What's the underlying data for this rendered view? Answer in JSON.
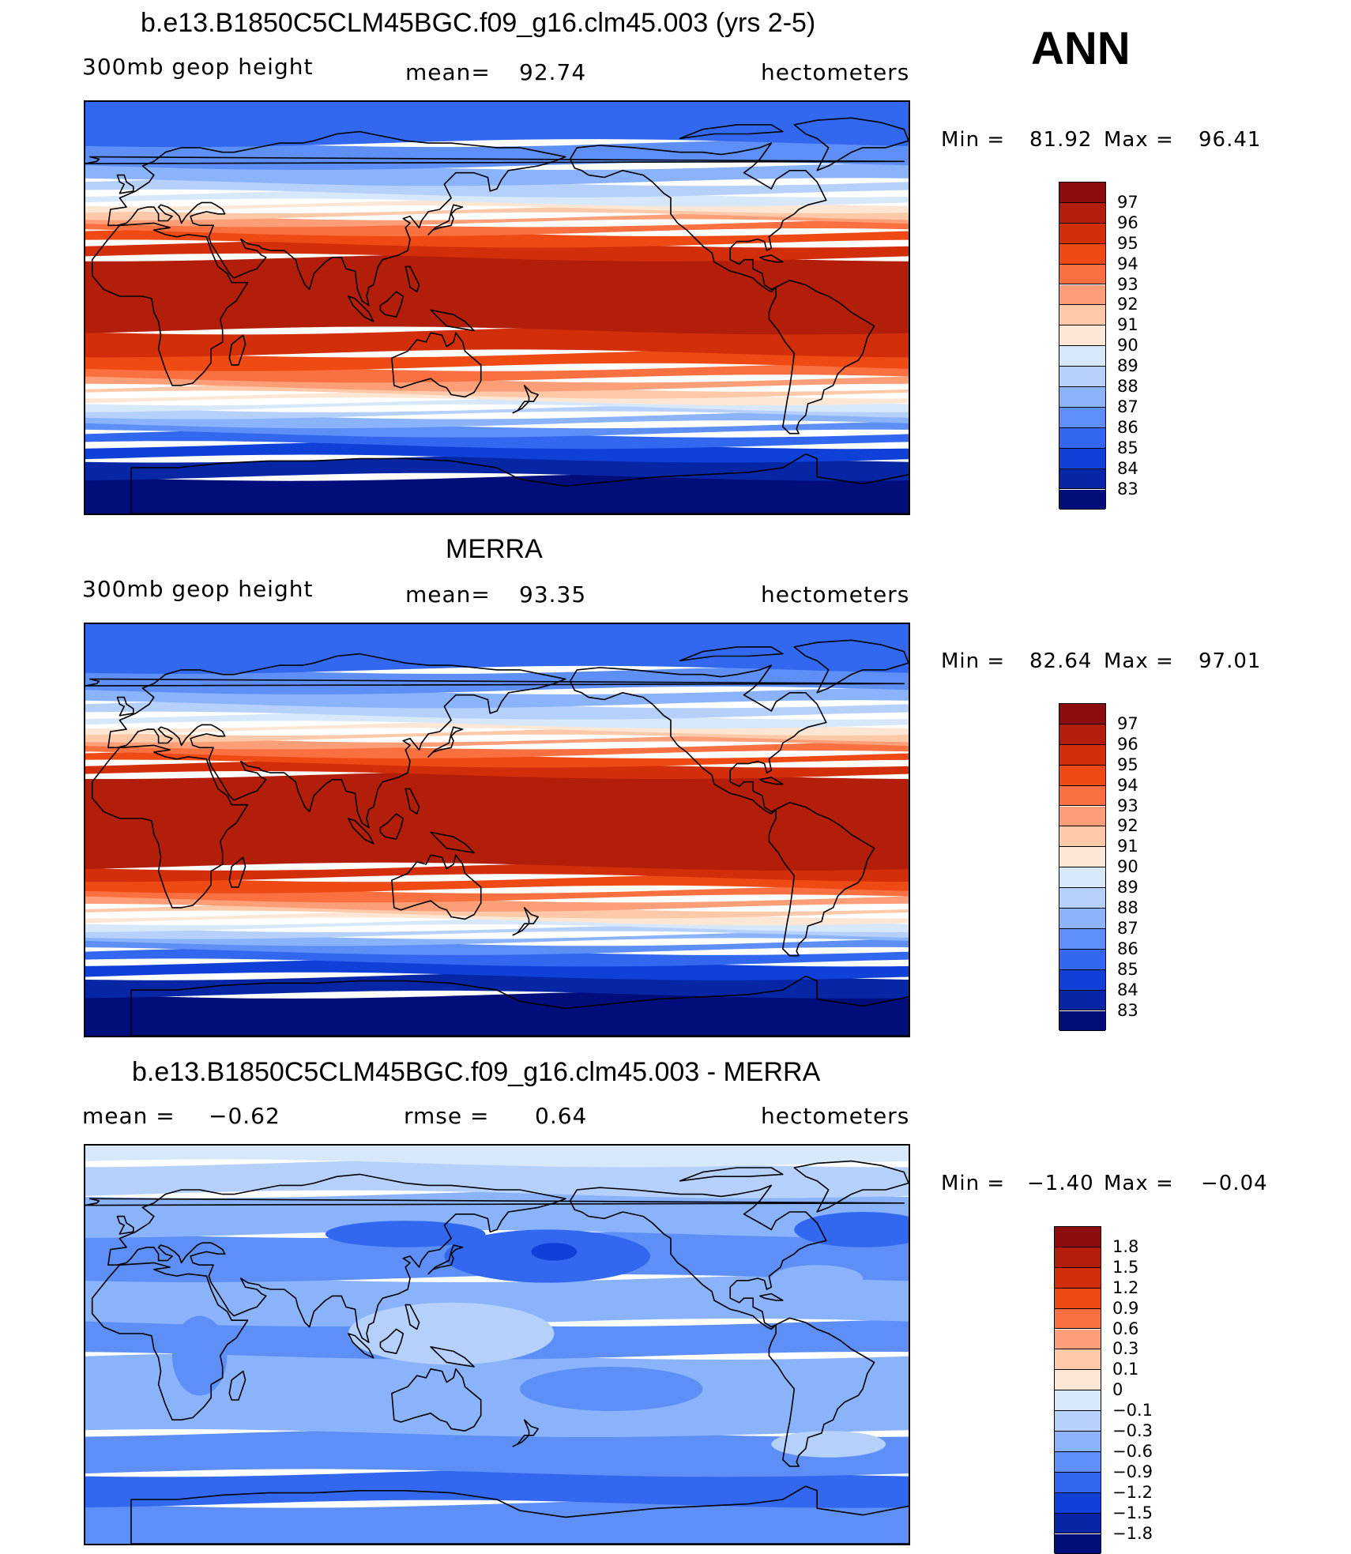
{
  "season": "ANN",
  "panels": [
    {
      "id": "model",
      "title": "b.e13.B1850C5CLM45BGC.f09_g16.clm45.003 (yrs 2-5)",
      "left_label": "300mb geop height",
      "center_label": "mean=",
      "center_value": "92.74",
      "right_label": "hectometers",
      "min_max": {
        "min_label": "Min =",
        "min": "81.92",
        "max_label": "Max =",
        "max": "96.41"
      },
      "legend": {
        "labels": [
          "97",
          "96",
          "95",
          "94",
          "93",
          "92",
          "91",
          "90",
          "89",
          "88",
          "87",
          "86",
          "85",
          "84",
          "83"
        ],
        "colors": [
          "#8c0d0d",
          "#b21e0a",
          "#d22e0a",
          "#f04a14",
          "#fb7040",
          "#fc9e78",
          "#fdc9a8",
          "#fee6d4",
          "#d7e8fb",
          "#b4d0fb",
          "#8ab3fb",
          "#5d8ff6",
          "#3268f0",
          "#0f41d8",
          "#0626a6",
          "#010d7a"
        ]
      },
      "map": {
        "bands": [
          {
            "from": -90,
            "to": -74,
            "color": "#010d7a"
          },
          {
            "from": -74,
            "to": -66,
            "color": "#0626a6"
          },
          {
            "from": -66,
            "to": -60,
            "color": "#0f41d8"
          },
          {
            "from": -60,
            "to": -55,
            "color": "#3268f0"
          },
          {
            "from": -55,
            "to": -51,
            "color": "#5d8ff6"
          },
          {
            "from": -51,
            "to": -47,
            "color": "#8ab3fb"
          },
          {
            "from": -47,
            "to": -44,
            "color": "#b4d0fb"
          },
          {
            "from": -44,
            "to": -41,
            "color": "#d7e8fb"
          },
          {
            "from": -41,
            "to": -38,
            "color": "#fee6d4"
          },
          {
            "from": -38,
            "to": -35,
            "color": "#fdc9a8"
          },
          {
            "from": -35,
            "to": -31,
            "color": "#fc9e78"
          },
          {
            "from": -31,
            "to": -26,
            "color": "#fb7040"
          },
          {
            "from": -26,
            "to": -20,
            "color": "#f04a14"
          },
          {
            "from": -20,
            "to": -10,
            "color": "#d22e0a"
          },
          {
            "from": -10,
            "to": 22,
            "color": "#b21e0a"
          },
          {
            "from": 22,
            "to": 28,
            "color": "#d22e0a"
          },
          {
            "from": 28,
            "to": 33,
            "color": "#f04a14"
          },
          {
            "from": 33,
            "to": 37,
            "color": "#fb7040"
          },
          {
            "from": 37,
            "to": 40,
            "color": "#fc9e78"
          },
          {
            "from": 40,
            "to": 43,
            "color": "#fdc9a8"
          },
          {
            "from": 43,
            "to": 46,
            "color": "#fee6d4"
          },
          {
            "from": 46,
            "to": 50,
            "color": "#d7e8fb"
          },
          {
            "from": 50,
            "to": 55,
            "color": "#b4d0fb"
          },
          {
            "from": 55,
            "to": 62,
            "color": "#8ab3fb"
          },
          {
            "from": 62,
            "to": 72,
            "color": "#5d8ff6"
          },
          {
            "from": 72,
            "to": 90,
            "color": "#3268f0"
          }
        ]
      }
    },
    {
      "id": "obs",
      "title": "MERRA",
      "left_label": "300mb geop height",
      "center_label": "mean=",
      "center_value": "93.35",
      "right_label": "hectometers",
      "min_max": {
        "min_label": "Min =",
        "min": "82.64",
        "max_label": "Max =",
        "max": "97.01"
      },
      "legend": {
        "labels": [
          "97",
          "96",
          "95",
          "94",
          "93",
          "92",
          "91",
          "90",
          "89",
          "88",
          "87",
          "86",
          "85",
          "84",
          "83"
        ],
        "colors": [
          "#8c0d0d",
          "#b21e0a",
          "#d22e0a",
          "#f04a14",
          "#fb7040",
          "#fc9e78",
          "#fdc9a8",
          "#fee6d4",
          "#d7e8fb",
          "#b4d0fb",
          "#8ab3fb",
          "#5d8ff6",
          "#3268f0",
          "#0f41d8",
          "#0626a6",
          "#010d7a"
        ]
      },
      "map": {
        "bands": [
          {
            "from": -90,
            "to": -72,
            "color": "#010d7a"
          },
          {
            "from": -72,
            "to": -64,
            "color": "#0626a6"
          },
          {
            "from": -64,
            "to": -58,
            "color": "#0f41d8"
          },
          {
            "from": -58,
            "to": -53,
            "color": "#3268f0"
          },
          {
            "from": -53,
            "to": -49,
            "color": "#5d8ff6"
          },
          {
            "from": -49,
            "to": -46,
            "color": "#8ab3fb"
          },
          {
            "from": -46,
            "to": -43,
            "color": "#b4d0fb"
          },
          {
            "from": -43,
            "to": -40,
            "color": "#d7e8fb"
          },
          {
            "from": -40,
            "to": -37,
            "color": "#fee6d4"
          },
          {
            "from": -37,
            "to": -34,
            "color": "#fdc9a8"
          },
          {
            "from": -34,
            "to": -30,
            "color": "#fc9e78"
          },
          {
            "from": -30,
            "to": -26,
            "color": "#fb7040"
          },
          {
            "from": -26,
            "to": -21,
            "color": "#f04a14"
          },
          {
            "from": -21,
            "to": -16,
            "color": "#d22e0a"
          },
          {
            "from": -16,
            "to": 24,
            "color": "#b21e0a"
          },
          {
            "from": 24,
            "to": 29,
            "color": "#d22e0a"
          },
          {
            "from": 29,
            "to": 33,
            "color": "#f04a14"
          },
          {
            "from": 33,
            "to": 37,
            "color": "#fb7040"
          },
          {
            "from": 37,
            "to": 40,
            "color": "#fc9e78"
          },
          {
            "from": 40,
            "to": 43,
            "color": "#fdc9a8"
          },
          {
            "from": 43,
            "to": 46,
            "color": "#fee6d4"
          },
          {
            "from": 46,
            "to": 50,
            "color": "#d7e8fb"
          },
          {
            "from": 50,
            "to": 55,
            "color": "#b4d0fb"
          },
          {
            "from": 55,
            "to": 61,
            "color": "#8ab3fb"
          },
          {
            "from": 61,
            "to": 70,
            "color": "#5d8ff6"
          },
          {
            "from": 70,
            "to": 90,
            "color": "#3268f0"
          }
        ]
      }
    },
    {
      "id": "diff",
      "title": "b.e13.B1850C5CLM45BGC.f09_g16.clm45.003 - MERRA",
      "left_label": "mean =",
      "left_value": "−0.62",
      "center_label": "rmse =",
      "center_value": "0.64",
      "right_label": "hectometers",
      "min_max": {
        "min_label": "Min =",
        "min": "−1.40",
        "max_label": "Max =",
        "max": "−0.04"
      },
      "legend": {
        "labels": [
          "1.8",
          "1.5",
          "1.2",
          "0.9",
          "0.6",
          "0.3",
          "0.1",
          "0",
          "−0.1",
          "−0.3",
          "−0.6",
          "−0.9",
          "−1.2",
          "−1.5",
          "−1.8"
        ],
        "colors": [
          "#8c0d0d",
          "#b21e0a",
          "#d22e0a",
          "#f04a14",
          "#fb7040",
          "#fc9e78",
          "#fdc9a8",
          "#fee6d4",
          "#d7e8fb",
          "#b4d0fb",
          "#8ab3fb",
          "#5d8ff6",
          "#3268f0",
          "#0f41d8",
          "#0626a6",
          "#010d7a"
        ]
      },
      "map": {
        "bands": [
          {
            "from": -90,
            "to": -72,
            "color": "#5d8ff6"
          },
          {
            "from": -72,
            "to": -58,
            "color": "#3268f0"
          },
          {
            "from": -58,
            "to": -40,
            "color": "#5d8ff6"
          },
          {
            "from": -40,
            "to": -5,
            "color": "#8ab3fb"
          },
          {
            "from": -5,
            "to": 10,
            "color": "#5d8ff6"
          },
          {
            "from": 10,
            "to": 30,
            "color": "#8ab3fb"
          },
          {
            "from": 30,
            "to": 50,
            "color": "#5d8ff6"
          },
          {
            "from": 50,
            "to": 68,
            "color": "#8ab3fb"
          },
          {
            "from": 68,
            "to": 82,
            "color": "#b4d0fb"
          },
          {
            "from": 82,
            "to": 90,
            "color": "#d7e8fb"
          }
        ],
        "blobs": [
          {
            "lon": 182,
            "lat": 40,
            "rx": 45,
            "ry": 12,
            "color": "#3268f0"
          },
          {
            "lon": 185,
            "lat": 42,
            "rx": 10,
            "ry": 4,
            "color": "#0f41d8"
          },
          {
            "lon": 320,
            "lat": 52,
            "rx": 30,
            "ry": 8,
            "color": "#3268f0"
          },
          {
            "lon": 120,
            "lat": 50,
            "rx": 35,
            "ry": 6,
            "color": "#3268f0"
          },
          {
            "lon": 140,
            "lat": 5,
            "rx": 45,
            "ry": 14,
            "color": "#b4d0fb"
          },
          {
            "lon": 210,
            "lat": -20,
            "rx": 40,
            "ry": 10,
            "color": "#5d8ff6"
          },
          {
            "lon": 30,
            "lat": -5,
            "rx": 12,
            "ry": 18,
            "color": "#5d8ff6"
          },
          {
            "lon": 305,
            "lat": -45,
            "rx": 25,
            "ry": 6,
            "color": "#b4d0fb"
          },
          {
            "lon": 300,
            "lat": 30,
            "rx": 20,
            "ry": 6,
            "color": "#8ab3fb"
          }
        ]
      }
    }
  ]
}
